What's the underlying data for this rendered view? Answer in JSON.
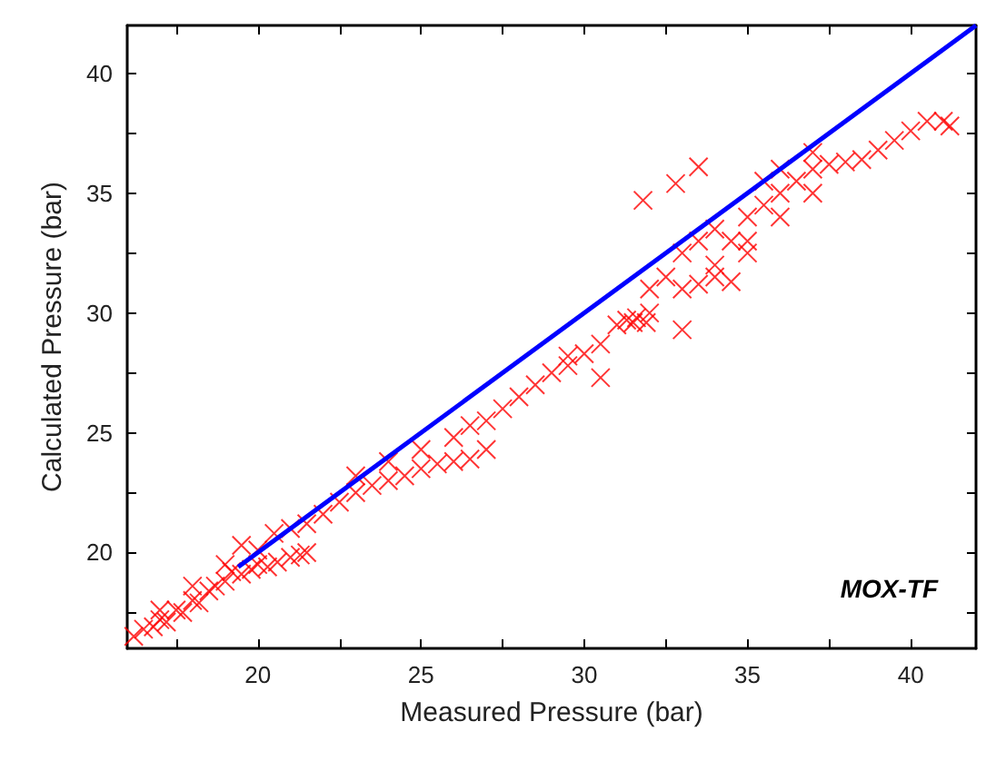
{
  "chart_data": {
    "type": "scatter",
    "xlabel": "Measured Pressure (bar)",
    "ylabel": "Calculated Pressure (bar)",
    "xlim": [
      16,
      42
    ],
    "ylim": [
      16,
      42
    ],
    "xticks": [
      {
        "value": 17.5,
        "label": null
      },
      20,
      {
        "value": 22.5,
        "label": null
      },
      25,
      {
        "value": 27.5,
        "label": null
      },
      30,
      {
        "value": 32.5,
        "label": null
      },
      35,
      {
        "value": 37.5,
        "label": null
      },
      40
    ],
    "yticks": [
      {
        "value": 17.5,
        "label": null
      },
      20,
      {
        "value": 22.5,
        "label": null
      },
      25,
      {
        "value": 27.5,
        "label": null
      },
      30,
      {
        "value": 32.5,
        "label": null
      },
      35,
      {
        "value": 37.5,
        "label": null
      },
      40
    ],
    "grid": false,
    "marker": "cross",
    "annotations": [
      "MOX-TF"
    ],
    "series": [
      {
        "color": "#ff0000",
        "x": [
          16.2,
          16.5,
          16.8,
          17,
          17.2,
          17.5,
          17.7,
          18,
          18.2,
          18.5,
          18.7,
          19,
          19.2,
          19.5,
          19.8,
          20,
          20.3,
          20.6,
          21,
          21.3,
          21.5,
          17,
          18,
          19,
          19.5,
          20,
          20.5,
          21,
          21.5,
          22,
          22.5,
          23,
          23.5,
          24,
          24.5,
          25,
          25.5,
          26,
          26.5,
          27,
          23,
          24,
          25,
          26,
          26.5,
          27,
          27.5,
          28,
          28.5,
          29,
          29.5,
          30,
          30.5,
          31,
          31.3,
          31.6,
          31.9,
          29.5,
          30.5,
          32,
          32,
          32.5,
          33,
          33.5,
          34,
          34.5,
          33,
          33.5,
          34,
          34.5,
          35,
          35.5,
          36,
          36.5,
          37,
          37.5,
          38,
          38.5,
          39,
          39.5,
          40,
          40.5,
          41,
          41.2,
          35,
          36,
          37,
          34,
          35,
          35.5,
          36,
          37,
          31.8,
          32.8,
          33.5,
          33,
          31.5
        ],
        "values": [
          16.5,
          16.8,
          16.9,
          17.2,
          17.1,
          17.6,
          17.5,
          18,
          17.9,
          18.4,
          18.6,
          18.8,
          19.2,
          19.1,
          19.3,
          19.5,
          19.4,
          19.6,
          19.8,
          19.9,
          20,
          17.6,
          18.6,
          19.5,
          20.3,
          20.1,
          20.8,
          21,
          21.2,
          21.6,
          22.1,
          22.5,
          22.8,
          23,
          23.2,
          23.5,
          23.7,
          23.8,
          23.9,
          24.3,
          23.2,
          23.8,
          24.3,
          24.8,
          25.3,
          25.5,
          26,
          26.5,
          27,
          27.5,
          28.2,
          28.3,
          28.7,
          29.5,
          29.7,
          29.8,
          29.6,
          27.8,
          27.3,
          30,
          31,
          31.5,
          31,
          31.2,
          31.5,
          31.3,
          32.5,
          33,
          33.5,
          33,
          34,
          34.5,
          35,
          35.5,
          36,
          36.2,
          36.3,
          36.4,
          36.8,
          37.2,
          37.6,
          38,
          38,
          37.8,
          33,
          34,
          35,
          32,
          32.5,
          35.5,
          36,
          36.7,
          34.7,
          35.4,
          36.1,
          29.3,
          29.6
        ]
      },
      {
        "type": "line",
        "color": "#0000ff",
        "marker": "none",
        "x": [
          19.4,
          42
        ],
        "values": [
          19.4,
          42
        ]
      }
    ]
  }
}
